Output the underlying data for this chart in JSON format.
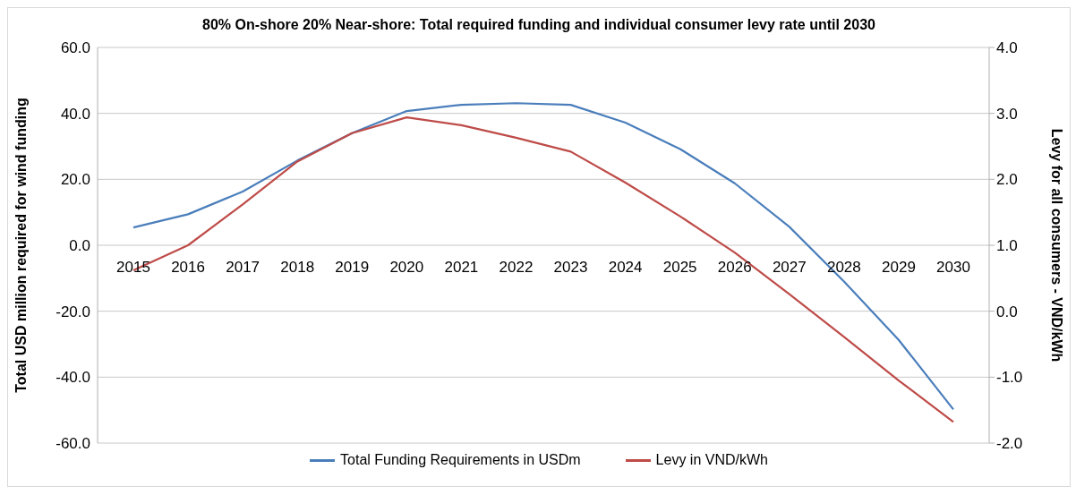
{
  "chart_data": {
    "type": "line",
    "title": "80% On-shore 20% Near-shore: Total required funding and individual consumer levy rate until 2030",
    "ylabel": "Total USD million required for wind funding",
    "y2label": "Levy for all consumers - VND/kWh",
    "categories": [
      "2015",
      "2016",
      "2017",
      "2018",
      "2019",
      "2020",
      "2021",
      "2022",
      "2023",
      "2024",
      "2025",
      "2026",
      "2027",
      "2028",
      "2029",
      "2030"
    ],
    "series": [
      {
        "name": "Total Funding Requirements in USDm",
        "color": "#4a7ebb",
        "values": [
          5.4,
          9.4,
          16.3,
          25.7,
          34.0,
          40.7,
          42.6,
          43.1,
          42.6,
          37.2,
          29.2,
          18.8,
          5.6,
          -11.0,
          -28.7,
          -49.8
        ]
      },
      {
        "name": "Levy in VND/kWh",
        "color": "#be4b48",
        "axis": "y2",
        "values": [
          0.62,
          1.0,
          1.62,
          2.27,
          2.7,
          2.94,
          2.82,
          2.63,
          2.42,
          1.95,
          1.44,
          0.89,
          0.26,
          -0.39,
          -1.05,
          -1.68
        ]
      }
    ],
    "ylim": [
      -60,
      60
    ],
    "yticks": [
      {
        "value": -60,
        "label": "-60.0"
      },
      {
        "value": -40,
        "label": "-40.0"
      },
      {
        "value": -20,
        "label": "-20.0"
      },
      {
        "value": 0,
        "label": "0.0"
      },
      {
        "value": 20,
        "label": "20.0"
      },
      {
        "value": 40,
        "label": "40.0"
      },
      {
        "value": 60,
        "label": "60.0"
      }
    ],
    "y2lim": [
      -2,
      4
    ],
    "y2ticks": [
      {
        "value": -2,
        "label": "-2.0"
      },
      {
        "value": -1,
        "label": "-1.0"
      },
      {
        "value": 0,
        "label": "0.0"
      },
      {
        "value": 1,
        "label": "1.0"
      },
      {
        "value": 2,
        "label": "2.0"
      },
      {
        "value": 3,
        "label": "3.0"
      },
      {
        "value": 4,
        "label": "4.0"
      }
    ],
    "grid": "y",
    "legend": "bottom",
    "marker": "none",
    "line_style": "solid"
  }
}
